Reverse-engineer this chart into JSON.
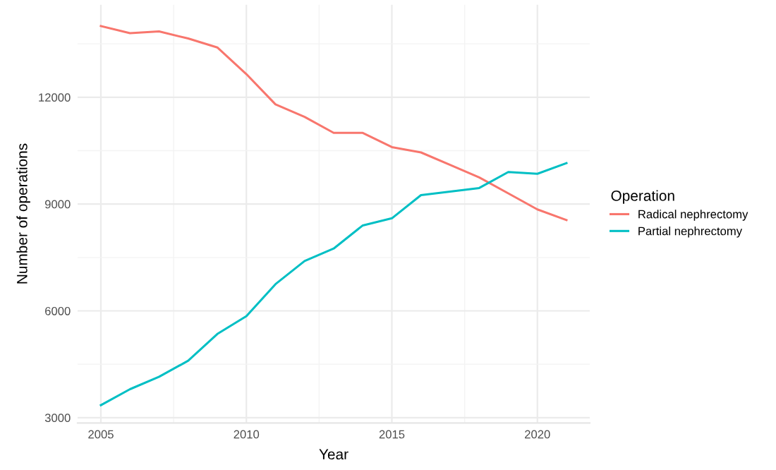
{
  "chart_data": {
    "type": "line",
    "xlabel": "Year",
    "ylabel": "Number of operations",
    "legend_title": "Operation",
    "legend": "right",
    "grid": true,
    "x": [
      2005,
      2006,
      2007,
      2008,
      2009,
      2010,
      2011,
      2012,
      2013,
      2014,
      2015,
      2016,
      2017,
      2018,
      2019,
      2020,
      2021
    ],
    "series": [
      {
        "name": "Radical nephrectomy",
        "color": "#f8766d",
        "values": [
          14000,
          13800,
          13850,
          13650,
          13400,
          12650,
          11800,
          11450,
          11000,
          11000,
          10600,
          10450,
          10100,
          9750,
          9300,
          8850,
          8550
        ]
      },
      {
        "name": "Partial nephrectomy",
        "color": "#00bfc4",
        "values": [
          3350,
          3800,
          4150,
          4600,
          5350,
          5850,
          6750,
          7400,
          7750,
          8400,
          8600,
          9250,
          9350,
          9450,
          9900,
          9850,
          10150
        ]
      }
    ],
    "xlim": [
      2004.2,
      2021.8
    ],
    "ylim": [
      2850,
      14600
    ],
    "xticks": [
      2005,
      2010,
      2015,
      2020
    ],
    "yticks": [
      3000,
      6000,
      9000,
      12000
    ]
  }
}
